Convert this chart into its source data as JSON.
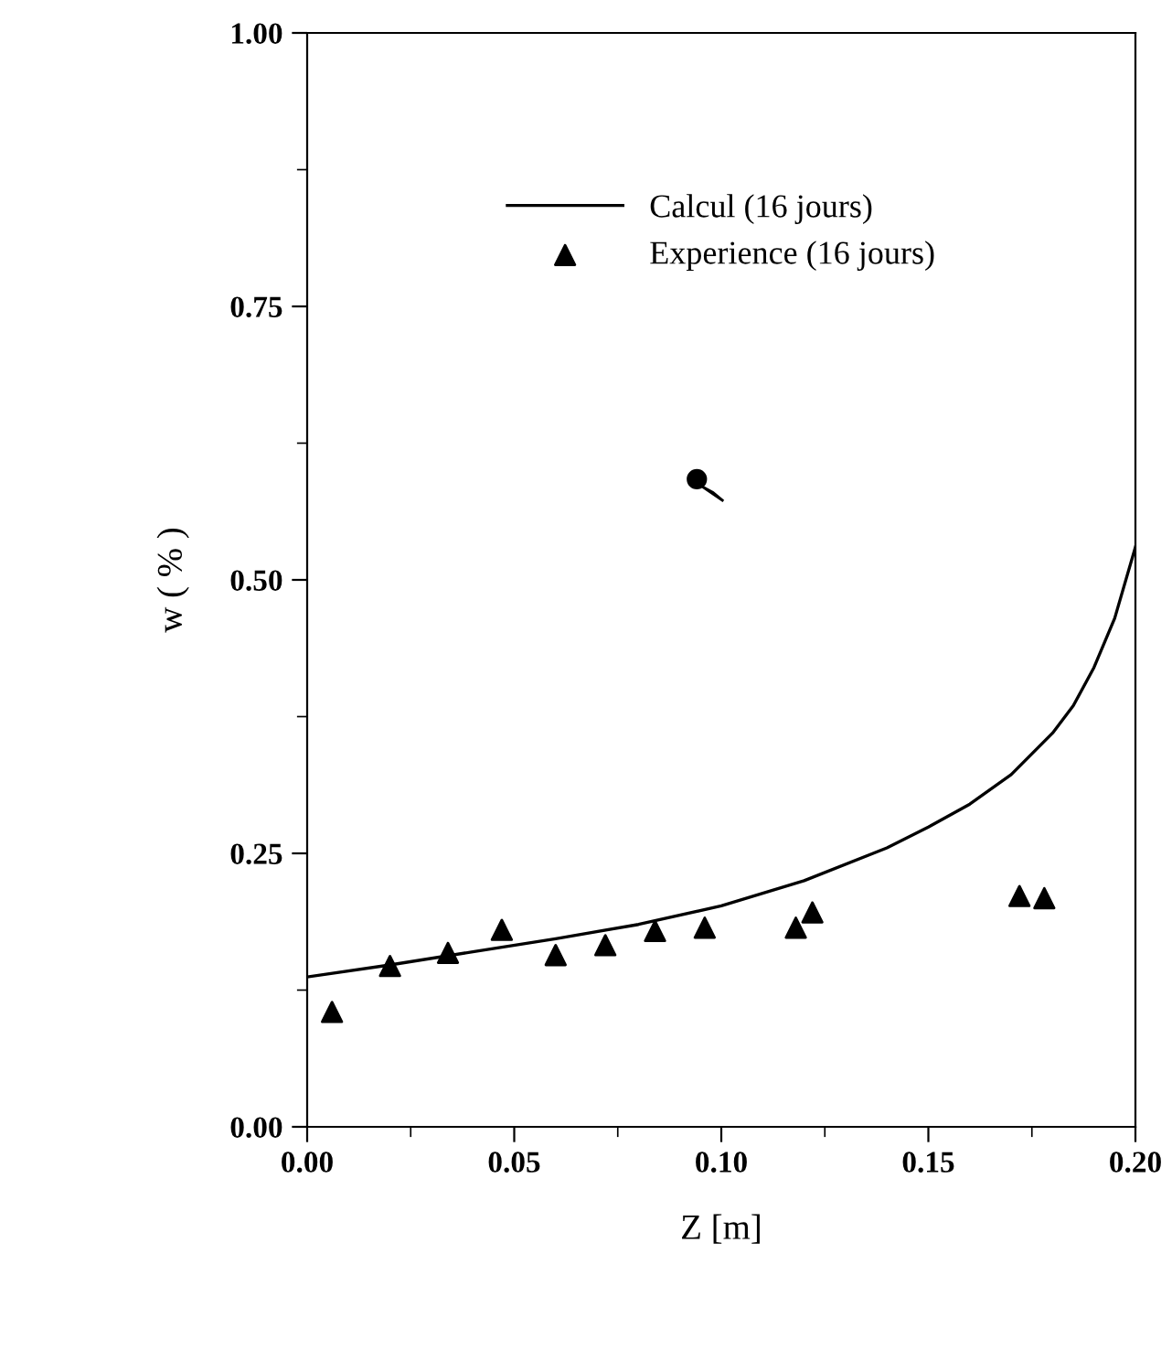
{
  "chart_data": {
    "type": "line",
    "xlabel": "Z [m]",
    "ylabel": "w ( % )",
    "xlim": [
      0,
      0.2
    ],
    "ylim": [
      0,
      1
    ],
    "xticks": [
      {
        "value": 0,
        "label": "0.00"
      },
      {
        "value": 0.05,
        "label": "0.05"
      },
      {
        "value": 0.1,
        "label": "0.10"
      },
      {
        "value": 0.15,
        "label": "0.15"
      },
      {
        "value": 0.2,
        "label": "0.20"
      }
    ],
    "yticks": [
      {
        "value": 0,
        "label": "0.00"
      },
      {
        "value": 0.25,
        "label": "0.25"
      },
      {
        "value": 0.5,
        "label": "0.50"
      },
      {
        "value": 0.75,
        "label": "0.75"
      },
      {
        "value": 1,
        "label": "1.00"
      }
    ],
    "grid": false,
    "legend": "top",
    "series": [
      {
        "name": "Calcul (16 jours)",
        "color": "#000000",
        "line_style": "solid",
        "marker": "none",
        "x": [
          0,
          0.02,
          0.04,
          0.06,
          0.08,
          0.1,
          0.12,
          0.14,
          0.15,
          0.16,
          0.17,
          0.18,
          0.185,
          0.19,
          0.195,
          0.2
        ],
        "values": [
          0.137,
          0.148,
          0.16,
          0.172,
          0.185,
          0.202,
          0.225,
          0.255,
          0.274,
          0.295,
          0.322,
          0.36,
          0.385,
          0.42,
          0.465,
          0.53
        ]
      },
      {
        "name": "Experience (16 jours)",
        "type": "scatter",
        "color": "#000000",
        "marker": "triangle",
        "x": [
          0.006,
          0.02,
          0.034,
          0.047,
          0.06,
          0.072,
          0.084,
          0.096,
          0.118,
          0.122,
          0.172,
          0.178
        ],
        "values": [
          0.105,
          0.147,
          0.159,
          0.18,
          0.157,
          0.166,
          0.179,
          0.182,
          0.182,
          0.196,
          0.211,
          0.209
        ]
      }
    ]
  }
}
